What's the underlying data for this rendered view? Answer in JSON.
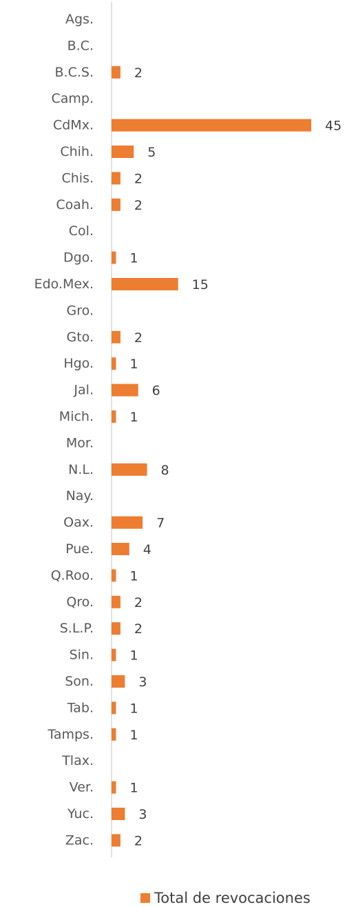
{
  "chart_data": {
    "type": "bar",
    "orientation": "horizontal",
    "categories": [
      "Ags.",
      "B.C.",
      "B.C.S.",
      "Camp.",
      "CdMx.",
      "Chih.",
      "Chis.",
      "Coah.",
      "Col.",
      "Dgo.",
      "Edo.Mex.",
      "Gro.",
      "Gto.",
      "Hgo.",
      "Jal.",
      "Mich.",
      "Mor.",
      "N.L.",
      "Nay.",
      "Oax.",
      "Pue.",
      "Q.Roo.",
      "Qro.",
      "S.L.P.",
      "Sin.",
      "Son.",
      "Tab.",
      "Tamps.",
      "Tlax.",
      "Ver.",
      "Yuc.",
      "Zac."
    ],
    "series": [
      {
        "name": "Total de revocaciones",
        "color": "#ED7D31",
        "values": [
          null,
          null,
          2,
          null,
          45,
          5,
          2,
          2,
          null,
          1,
          15,
          null,
          2,
          1,
          6,
          1,
          null,
          8,
          null,
          7,
          4,
          1,
          2,
          2,
          1,
          3,
          1,
          1,
          null,
          1,
          3,
          2
        ]
      }
    ],
    "xlim": [
      0,
      45
    ],
    "grid": false,
    "legend_position": "bottom"
  }
}
